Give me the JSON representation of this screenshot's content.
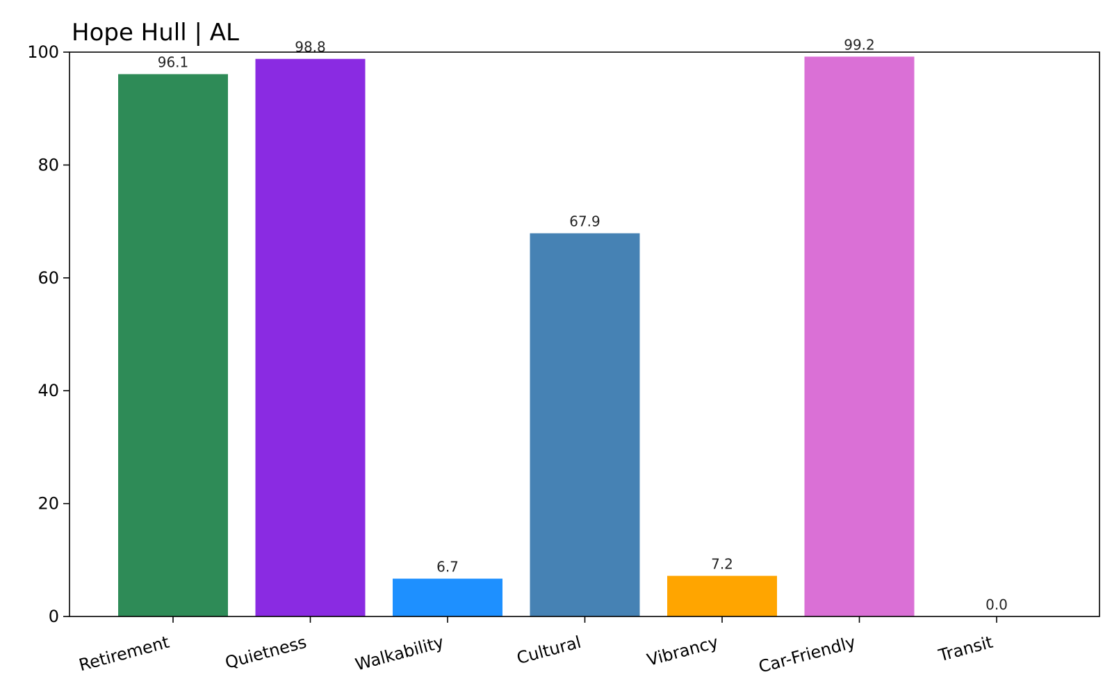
{
  "chart_data": {
    "type": "bar",
    "title": "Hope Hull | AL",
    "xlabel": "",
    "ylabel": "",
    "categories": [
      "Retirement",
      "Quietness",
      "Walkability",
      "Cultural",
      "Vibrancy",
      "Car-Friendly",
      "Transit"
    ],
    "values": [
      96.1,
      98.8,
      6.7,
      67.9,
      7.2,
      99.2,
      0.0
    ],
    "data_labels": [
      "96.1",
      "98.8",
      "6.7",
      "67.9",
      "7.2",
      "99.2",
      "0.0"
    ],
    "colors": [
      "#2e8b57",
      "#8a2be2",
      "#1e90ff",
      "#4682b4",
      "#ffa500",
      "#da70d6",
      "#dc143c"
    ],
    "ylim": [
      0,
      100
    ],
    "yticks": [
      0,
      20,
      40,
      60,
      80,
      100
    ],
    "ytick_labels": [
      "0",
      "20",
      "40",
      "60",
      "80",
      "100"
    ],
    "grid": false,
    "legend": "none"
  }
}
